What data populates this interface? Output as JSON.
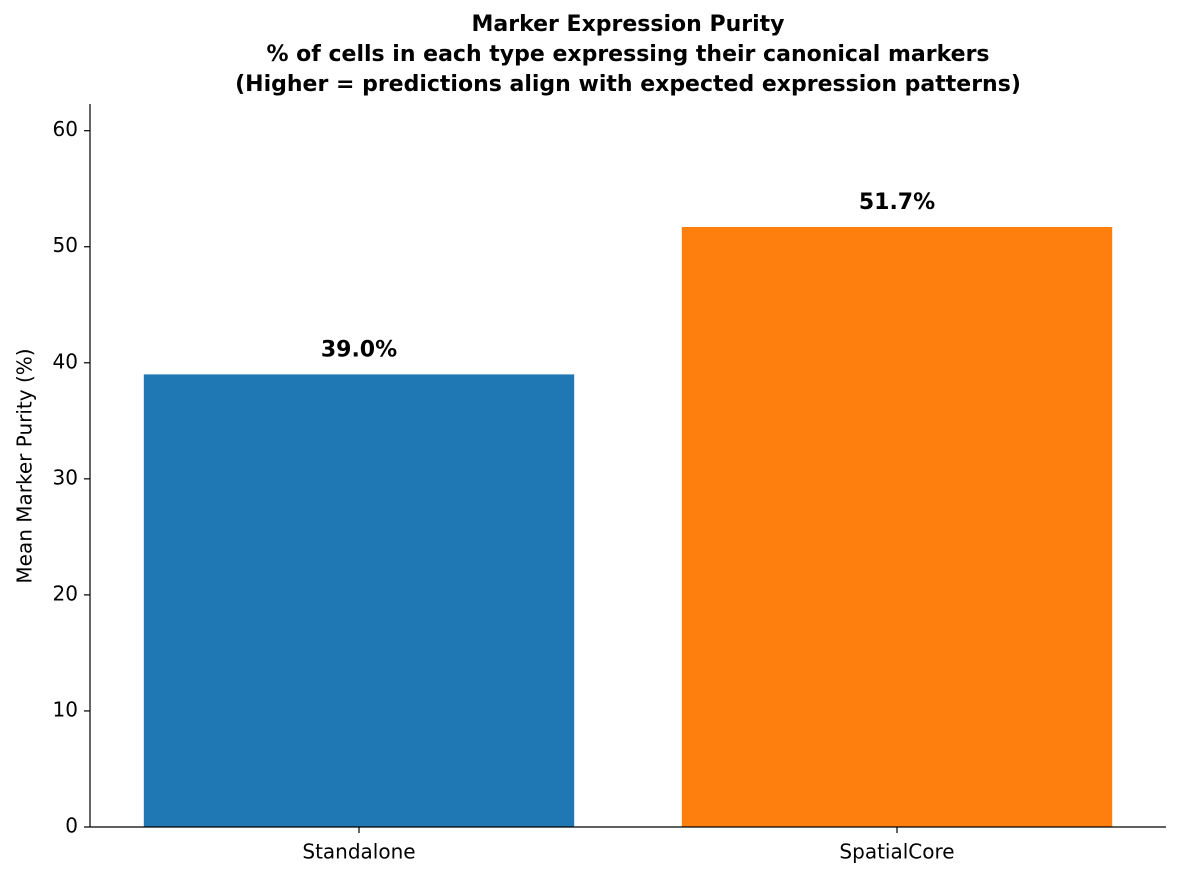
{
  "chart_data": {
    "type": "bar",
    "title": "Marker Expression Purity",
    "subtitle": [
      "% of cells in each type expressing their canonical markers",
      "(Higher = predictions align with expected expression patterns)"
    ],
    "y_label": "Mean Marker Purity (%)",
    "categories": [
      "Standalone",
      "SpatialCore"
    ],
    "values": [
      39.0,
      51.7
    ],
    "value_labels": [
      "39.0%",
      "51.7%"
    ],
    "colors": [
      "#1f77b4",
      "#ff7f0e"
    ],
    "ylim": [
      0,
      62.3
    ],
    "yticks": [
      0,
      10,
      20,
      30,
      40,
      50,
      60
    ],
    "grid": false
  }
}
